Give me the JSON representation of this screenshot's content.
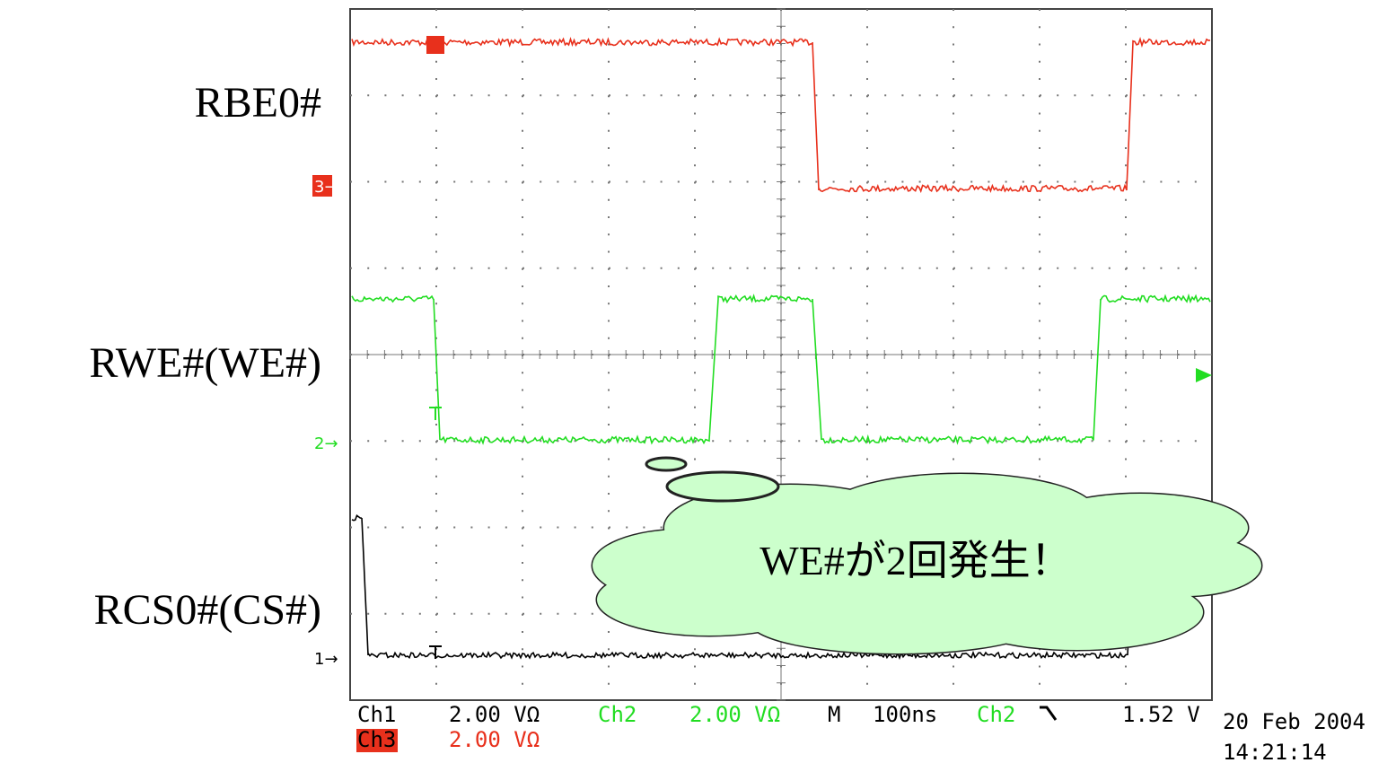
{
  "signal_labels": [
    "RBE0#",
    "RWE#(WE#)",
    "RCS0#(CS#)"
  ],
  "channel_markers": [
    "3→",
    "2→",
    "1→"
  ],
  "readout": {
    "row1": [
      "Ch1",
      "2.00 VΩ",
      "Ch2",
      "2.00 VΩ",
      "M",
      "100ns",
      "Ch2",
      "1.52 V"
    ],
    "row2": [
      "Ch3",
      "2.00 VΩ"
    ]
  },
  "timestamp": {
    "date": "20 Feb 2004",
    "time": "14:21:14"
  },
  "callout": "WE#が2回発生！"
}
